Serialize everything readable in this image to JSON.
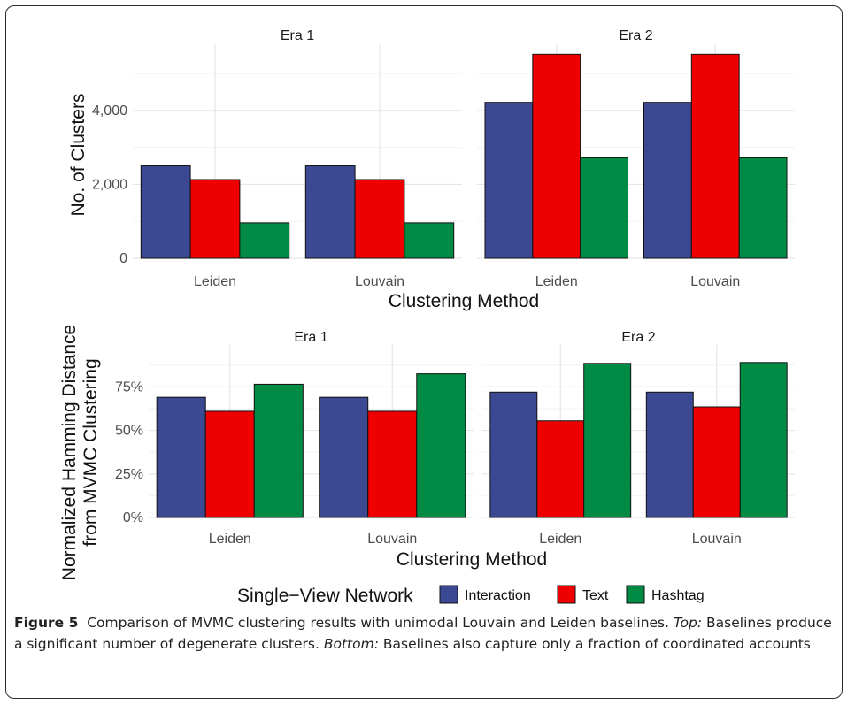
{
  "chart_data": [
    {
      "type": "bar",
      "ylabel": "No. of Clusters",
      "xlabel": "Clustering Method",
      "yticks": [
        0,
        2000,
        4000
      ],
      "ytick_labels": [
        "0",
        "2,000",
        "4,000"
      ],
      "ylim": [
        0,
        5600
      ],
      "grid": true,
      "facets": [
        {
          "title": "Era 1",
          "categories": [
            "Leiden",
            "Louvain"
          ],
          "series": [
            {
              "name": "Interaction",
              "values": [
                2500,
                2500
              ]
            },
            {
              "name": "Text",
              "values": [
                2130,
                2130
              ]
            },
            {
              "name": "Hashtag",
              "values": [
                960,
                960
              ]
            }
          ]
        },
        {
          "title": "Era 2",
          "categories": [
            "Leiden",
            "Louvain"
          ],
          "series": [
            {
              "name": "Interaction",
              "values": [
                4220,
                4220
              ]
            },
            {
              "name": "Text",
              "values": [
                5520,
                5520
              ]
            },
            {
              "name": "Hashtag",
              "values": [
                2720,
                2720
              ]
            }
          ]
        }
      ]
    },
    {
      "type": "bar",
      "ylabel": "Normalized Hamming Distance from MVMC Clustering",
      "xlabel": "Clustering Method",
      "yticks": [
        0,
        0.25,
        0.5,
        0.75
      ],
      "ytick_labels": [
        "0%",
        "25%",
        "50%",
        "75%"
      ],
      "ylim": [
        0,
        0.95
      ],
      "grid": true,
      "facets": [
        {
          "title": "Era 1",
          "categories": [
            "Leiden",
            "Louvain"
          ],
          "series": [
            {
              "name": "Interaction",
              "values": [
                0.69,
                0.69
              ]
            },
            {
              "name": "Text",
              "values": [
                0.61,
                0.61
              ]
            },
            {
              "name": "Hashtag",
              "values": [
                0.765,
                0.825
              ]
            }
          ]
        },
        {
          "title": "Era 2",
          "categories": [
            "Leiden",
            "Louvain"
          ],
          "series": [
            {
              "name": "Interaction",
              "values": [
                0.72,
                0.72
              ]
            },
            {
              "name": "Text",
              "values": [
                0.555,
                0.635
              ]
            },
            {
              "name": "Hashtag",
              "values": [
                0.885,
                0.89
              ]
            }
          ]
        }
      ]
    }
  ],
  "legend": {
    "title": "Single−View Network",
    "position": "bottom",
    "items": [
      {
        "name": "Interaction",
        "color": "#3b4992"
      },
      {
        "name": "Text",
        "color": "#ee0000"
      },
      {
        "name": "Hashtag",
        "color": "#008b45"
      }
    ]
  },
  "colors": {
    "Interaction": "#3b4992",
    "Text": "#ee0000",
    "Hashtag": "#008b45"
  },
  "caption": {
    "label": "Figure 5",
    "text": "Comparison of MVMC clustering results with unimodal Louvain and Leiden baselines.",
    "top_label": "Top:",
    "top_text": "Baselines produce a significant number of degenerate clusters.",
    "bottom_label": "Bottom:",
    "bottom_text": "Baselines also capture only a fraction of coordinated accounts"
  }
}
